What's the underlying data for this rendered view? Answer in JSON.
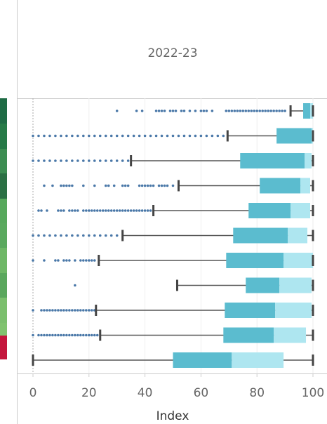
{
  "chart_data": {
    "type": "box",
    "title": "2022-23",
    "xlabel": "Index",
    "xlim": [
      0,
      100
    ],
    "xticks": [
      0,
      20,
      40,
      60,
      80,
      100
    ],
    "grid": true,
    "box_color": "#5bbccf",
    "upper_box_color": "#aee6f0",
    "whisker_color": "#555555",
    "outlier_color": "#4a78a8",
    "boxes": [
      {
        "low": 92,
        "q1": 96.5,
        "median": 99,
        "q3": 100,
        "high": 100,
        "outliers": [
          30,
          37,
          39,
          44,
          45,
          46,
          47,
          49,
          50,
          51,
          53,
          54,
          56,
          58,
          60,
          61,
          62,
          64,
          69,
          70,
          71,
          72,
          73,
          74,
          75,
          76,
          77,
          78,
          79,
          80,
          81,
          82,
          83,
          84,
          85,
          86,
          87,
          88,
          89,
          90
        ]
      },
      {
        "low": 69.5,
        "q1": 87,
        "median": 99.5,
        "q3": 100,
        "high": 100,
        "outliers": [
          0,
          2,
          4,
          6,
          8,
          10,
          12,
          14,
          16,
          18,
          20,
          22,
          24,
          26,
          28,
          30,
          32,
          34,
          36,
          38,
          40,
          42,
          44,
          46,
          48,
          50,
          52,
          54,
          56,
          58,
          60,
          62,
          64,
          66,
          68
        ]
      },
      {
        "low": 35,
        "q1": 74,
        "median": 97,
        "q3": 99.5,
        "high": 100,
        "outliers": [
          0,
          2,
          4,
          6,
          8,
          10,
          12,
          14,
          16,
          18,
          20,
          22,
          24,
          26,
          28,
          30,
          32,
          34
        ]
      },
      {
        "low": 52,
        "q1": 81,
        "median": 95.5,
        "q3": 99,
        "high": 100,
        "outliers": [
          4,
          7,
          10,
          11,
          12,
          13,
          14,
          18,
          22,
          26,
          27,
          29,
          32,
          33,
          34,
          38,
          39,
          40,
          41,
          42,
          43,
          45,
          46,
          47,
          48,
          50
        ]
      },
      {
        "low": 43,
        "q1": 77,
        "median": 92,
        "q3": 99,
        "high": 100,
        "outliers": [
          2,
          3,
          5,
          9,
          10,
          11,
          13,
          14,
          15,
          16,
          18,
          19,
          20,
          21,
          22,
          23,
          24,
          25,
          26,
          27,
          28,
          29,
          30,
          31,
          32,
          33,
          34,
          35,
          36,
          37,
          38,
          39,
          40,
          41,
          42
        ]
      },
      {
        "low": 32,
        "q1": 71.5,
        "median": 91,
        "q3": 98,
        "high": 100,
        "outliers": [
          0,
          2,
          4,
          6,
          8,
          10,
          12,
          14,
          16,
          18,
          20,
          22,
          24,
          26,
          28,
          30
        ]
      },
      {
        "low": 23.5,
        "q1": 69,
        "median": 89.5,
        "q3": 100,
        "high": 100,
        "outliers": [
          0,
          4,
          8,
          9,
          11,
          12,
          13,
          15,
          17,
          18,
          19,
          20,
          21,
          22
        ]
      },
      {
        "low": 51.5,
        "q1": 76,
        "median": 88,
        "q3": 99.5,
        "high": 100,
        "outliers": [
          15
        ]
      },
      {
        "low": 22.5,
        "q1": 68.5,
        "median": 86.5,
        "q3": 99.5,
        "high": 100,
        "outliers": [
          0,
          3,
          4,
          5,
          6,
          7,
          8,
          9,
          10,
          11,
          12,
          13,
          14,
          15,
          16,
          17,
          18,
          19,
          20,
          21,
          22
        ]
      },
      {
        "low": 24,
        "q1": 68,
        "median": 86,
        "q3": 97.5,
        "high": 100,
        "outliers": [
          0,
          2,
          3,
          4,
          5,
          6,
          7,
          8,
          9,
          10,
          11,
          12,
          13,
          14,
          15,
          16,
          17,
          18,
          19,
          20,
          21,
          22,
          23
        ]
      },
      {
        "low": 0,
        "q1": 50,
        "median": 71,
        "q3": 89.5,
        "high": 100,
        "outliers": []
      }
    ]
  }
}
